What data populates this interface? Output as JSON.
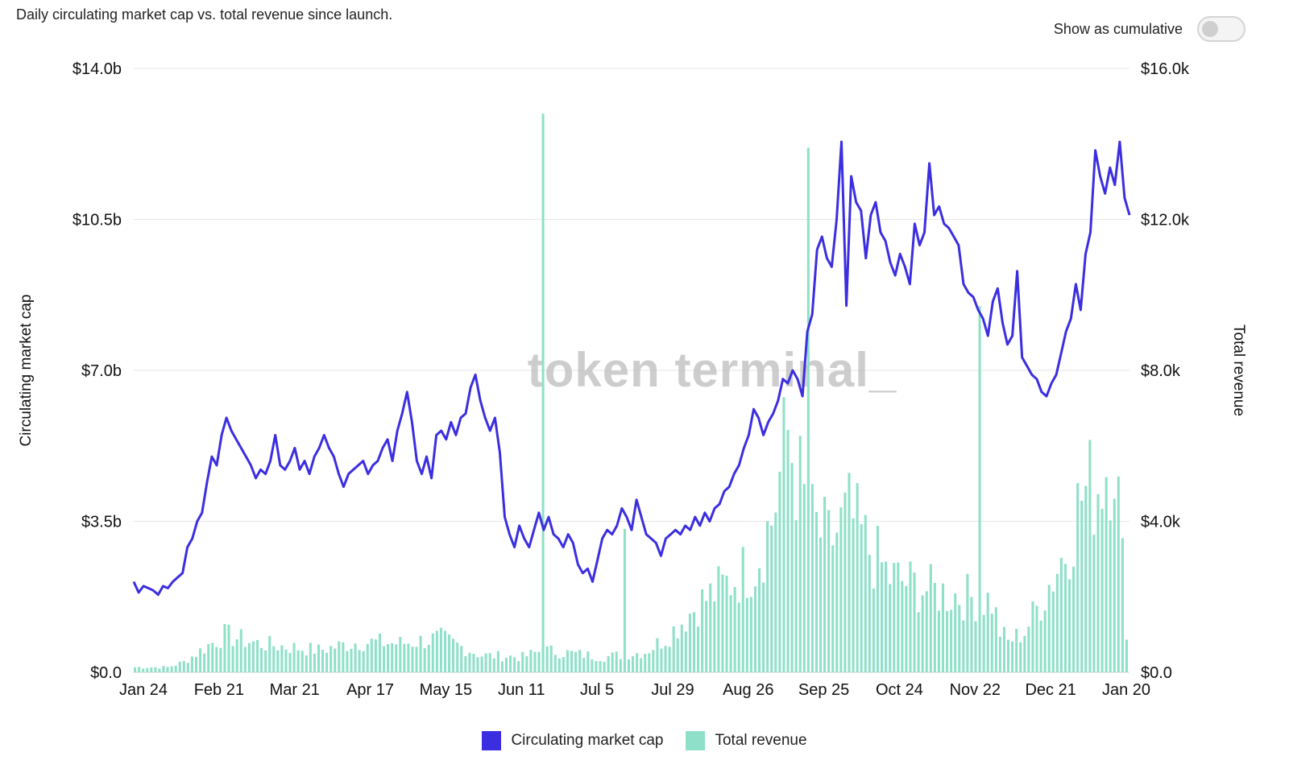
{
  "header": {
    "subtitle": "Daily circulating market cap vs. total revenue since launch.",
    "toggle_label": "Show as cumulative",
    "toggle_on": false
  },
  "watermark": "token terminal_",
  "colors": {
    "market_cap": "#3b2ee0",
    "revenue": "#8fe0c8",
    "grid": "#e6e6e6"
  },
  "chart_data": {
    "type": "bar+line",
    "title": "",
    "x_ticks": [
      "Jan 24",
      "Feb 21",
      "Mar 21",
      "Apr 17",
      "May 15",
      "Jun 11",
      "Jul 5",
      "Jul 29",
      "Aug 26",
      "Sep 25",
      "Oct 24",
      "Nov 22",
      "Dec 21",
      "Jan 20"
    ],
    "y_left": {
      "label": "Circulating market cap",
      "ticks": [
        "$0.0",
        "$3.5b",
        "$7.0b",
        "$10.5b",
        "$14.0b"
      ],
      "lim": [
        0,
        14.0
      ],
      "unit": "billions USD"
    },
    "y_right": {
      "label": "Total revenue",
      "ticks": [
        "$0.0",
        "$4.0k",
        "$8.0k",
        "$12.0k",
        "$16.0k"
      ],
      "lim": [
        0,
        16000
      ],
      "unit": "USD"
    },
    "legend": [
      {
        "name": "Circulating market cap",
        "color": "#3b2ee0"
      },
      {
        "name": "Total revenue",
        "color": "#8fe0c8"
      }
    ],
    "legend_position": "bottom-center",
    "grid": true,
    "series": [
      {
        "name": "Circulating market cap",
        "axis": "left",
        "type": "line",
        "points": [
          [
            0,
            2.1
          ],
          [
            1,
            1.85
          ],
          [
            2,
            2.0
          ],
          [
            3,
            1.95
          ],
          [
            4,
            1.9
          ],
          [
            5,
            1.8
          ],
          [
            6,
            2.0
          ],
          [
            7,
            1.95
          ],
          [
            8,
            2.1
          ],
          [
            9,
            2.2
          ],
          [
            10,
            2.3
          ],
          [
            11,
            2.9
          ],
          [
            12,
            3.1
          ],
          [
            13,
            3.5
          ],
          [
            14,
            3.7
          ],
          [
            15,
            4.4
          ],
          [
            16,
            5.0
          ],
          [
            17,
            4.8
          ],
          [
            18,
            5.5
          ],
          [
            19,
            5.9
          ],
          [
            20,
            5.6
          ],
          [
            21,
            5.4
          ],
          [
            22,
            5.2
          ],
          [
            23,
            5.0
          ],
          [
            24,
            4.8
          ],
          [
            25,
            4.5
          ],
          [
            26,
            4.7
          ],
          [
            27,
            4.6
          ],
          [
            28,
            4.9
          ],
          [
            29,
            5.5
          ],
          [
            30,
            4.8
          ],
          [
            31,
            4.7
          ],
          [
            32,
            4.9
          ],
          [
            33,
            5.2
          ],
          [
            34,
            4.7
          ],
          [
            35,
            4.9
          ],
          [
            36,
            4.6
          ],
          [
            37,
            5.0
          ],
          [
            38,
            5.2
          ],
          [
            39,
            5.5
          ],
          [
            40,
            5.2
          ],
          [
            41,
            5.0
          ],
          [
            42,
            4.6
          ],
          [
            43,
            4.3
          ],
          [
            44,
            4.6
          ],
          [
            45,
            4.7
          ],
          [
            46,
            4.8
          ],
          [
            47,
            4.9
          ],
          [
            48,
            4.6
          ],
          [
            49,
            4.8
          ],
          [
            50,
            4.9
          ],
          [
            51,
            5.2
          ],
          [
            52,
            5.4
          ],
          [
            53,
            4.9
          ],
          [
            54,
            5.6
          ],
          [
            55,
            6.0
          ],
          [
            56,
            6.5
          ],
          [
            57,
            5.8
          ],
          [
            58,
            4.9
          ],
          [
            59,
            4.6
          ],
          [
            60,
            5.0
          ],
          [
            61,
            4.5
          ],
          [
            62,
            5.5
          ],
          [
            63,
            5.6
          ],
          [
            64,
            5.4
          ],
          [
            65,
            5.8
          ],
          [
            66,
            5.5
          ],
          [
            67,
            5.9
          ],
          [
            68,
            6.0
          ],
          [
            69,
            6.6
          ],
          [
            70,
            6.9
          ],
          [
            71,
            6.3
          ],
          [
            72,
            5.9
          ],
          [
            73,
            5.6
          ],
          [
            74,
            5.9
          ],
          [
            75,
            5.1
          ],
          [
            76,
            3.6
          ],
          [
            77,
            3.2
          ],
          [
            78,
            2.9
          ],
          [
            79,
            3.4
          ],
          [
            80,
            3.1
          ],
          [
            81,
            2.9
          ],
          [
            82,
            3.3
          ],
          [
            83,
            3.7
          ],
          [
            84,
            3.3
          ],
          [
            85,
            3.6
          ],
          [
            86,
            3.2
          ],
          [
            87,
            3.1
          ],
          [
            88,
            2.9
          ],
          [
            89,
            3.2
          ],
          [
            90,
            3.0
          ],
          [
            91,
            2.5
          ],
          [
            92,
            2.3
          ],
          [
            93,
            2.4
          ],
          [
            94,
            2.1
          ],
          [
            95,
            2.6
          ],
          [
            96,
            3.1
          ],
          [
            97,
            3.3
          ],
          [
            98,
            3.2
          ],
          [
            99,
            3.4
          ],
          [
            100,
            3.8
          ],
          [
            101,
            3.6
          ],
          [
            102,
            3.3
          ],
          [
            103,
            4.0
          ],
          [
            104,
            3.6
          ],
          [
            105,
            3.2
          ],
          [
            106,
            3.1
          ],
          [
            107,
            3.0
          ],
          [
            108,
            2.7
          ],
          [
            109,
            3.1
          ],
          [
            110,
            3.2
          ],
          [
            111,
            3.3
          ],
          [
            112,
            3.2
          ],
          [
            113,
            3.4
          ],
          [
            114,
            3.3
          ],
          [
            115,
            3.6
          ],
          [
            116,
            3.4
          ],
          [
            117,
            3.7
          ],
          [
            118,
            3.5
          ],
          [
            119,
            3.8
          ],
          [
            120,
            3.9
          ],
          [
            121,
            4.2
          ],
          [
            122,
            4.3
          ],
          [
            123,
            4.6
          ],
          [
            124,
            4.8
          ],
          [
            125,
            5.2
          ],
          [
            126,
            5.5
          ],
          [
            127,
            6.1
          ],
          [
            128,
            5.9
          ],
          [
            129,
            5.5
          ],
          [
            130,
            5.8
          ],
          [
            131,
            6.0
          ],
          [
            132,
            6.3
          ],
          [
            133,
            6.8
          ],
          [
            134,
            6.7
          ],
          [
            135,
            7.0
          ],
          [
            136,
            6.8
          ],
          [
            137,
            6.4
          ],
          [
            138,
            7.9
          ],
          [
            139,
            8.3
          ],
          [
            140,
            9.8
          ],
          [
            141,
            10.1
          ],
          [
            142,
            9.6
          ],
          [
            143,
            9.4
          ],
          [
            144,
            10.5
          ],
          [
            145,
            12.3
          ],
          [
            146,
            8.5
          ],
          [
            147,
            11.5
          ],
          [
            148,
            10.9
          ],
          [
            149,
            10.7
          ],
          [
            150,
            9.6
          ],
          [
            151,
            10.6
          ],
          [
            152,
            10.9
          ],
          [
            153,
            10.2
          ],
          [
            154,
            10.0
          ],
          [
            155,
            9.5
          ],
          [
            156,
            9.2
          ],
          [
            157,
            9.7
          ],
          [
            158,
            9.4
          ],
          [
            159,
            9.0
          ],
          [
            160,
            10.4
          ],
          [
            161,
            9.9
          ],
          [
            162,
            10.2
          ],
          [
            163,
            11.8
          ],
          [
            164,
            10.6
          ],
          [
            165,
            10.8
          ],
          [
            166,
            10.4
          ],
          [
            167,
            10.3
          ],
          [
            168,
            10.1
          ],
          [
            169,
            9.9
          ],
          [
            170,
            9.0
          ],
          [
            171,
            8.8
          ],
          [
            172,
            8.7
          ],
          [
            173,
            8.4
          ],
          [
            174,
            8.2
          ],
          [
            175,
            7.8
          ],
          [
            176,
            8.6
          ],
          [
            177,
            8.9
          ],
          [
            178,
            8.1
          ],
          [
            179,
            7.6
          ],
          [
            180,
            7.8
          ],
          [
            181,
            9.3
          ],
          [
            182,
            7.3
          ],
          [
            183,
            7.1
          ],
          [
            184,
            6.9
          ],
          [
            185,
            6.8
          ],
          [
            186,
            6.5
          ],
          [
            187,
            6.4
          ],
          [
            188,
            6.7
          ],
          [
            189,
            6.9
          ],
          [
            190,
            7.4
          ],
          [
            191,
            7.9
          ],
          [
            192,
            8.2
          ],
          [
            193,
            9.0
          ],
          [
            194,
            8.4
          ],
          [
            195,
            9.7
          ],
          [
            196,
            10.2
          ],
          [
            197,
            12.1
          ],
          [
            198,
            11.5
          ],
          [
            199,
            11.1
          ],
          [
            200,
            11.7
          ],
          [
            201,
            11.3
          ],
          [
            202,
            12.3
          ],
          [
            203,
            11.0
          ],
          [
            204,
            10.6
          ]
        ]
      },
      {
        "name": "Total revenue",
        "axis": "right",
        "type": "bar",
        "spikes": [
          [
            100,
            14800
          ],
          [
            120,
            3800
          ],
          [
            165,
            13900
          ],
          [
            207,
            9700
          ]
        ],
        "envelope": [
          [
            0,
            150
          ],
          [
            8,
            150
          ],
          [
            12,
            300
          ],
          [
            18,
            800
          ],
          [
            22,
            1100
          ],
          [
            30,
            850
          ],
          [
            45,
            650
          ],
          [
            55,
            900
          ],
          [
            65,
            850
          ],
          [
            75,
            1000
          ],
          [
            85,
            500
          ],
          [
            95,
            450
          ],
          [
            100,
            650
          ],
          [
            115,
            450
          ],
          [
            125,
            600
          ],
          [
            130,
            1000
          ],
          [
            138,
            2000
          ],
          [
            145,
            2600
          ],
          [
            152,
            3200
          ],
          [
            156,
            4500
          ],
          [
            160,
            7000
          ],
          [
            165,
            4500
          ],
          [
            170,
            3800
          ],
          [
            175,
            4600
          ],
          [
            180,
            3600
          ],
          [
            185,
            2800
          ],
          [
            190,
            2600
          ],
          [
            195,
            2400
          ],
          [
            200,
            2300
          ],
          [
            205,
            2200
          ],
          [
            210,
            2100
          ],
          [
            212,
            1200
          ],
          [
            214,
            900
          ],
          [
            218,
            1200
          ],
          [
            222,
            2100
          ],
          [
            228,
            3600
          ],
          [
            232,
            5200
          ],
          [
            236,
            5600
          ],
          [
            240,
            6800
          ],
          [
            243,
            1400
          ]
        ]
      }
    ]
  }
}
